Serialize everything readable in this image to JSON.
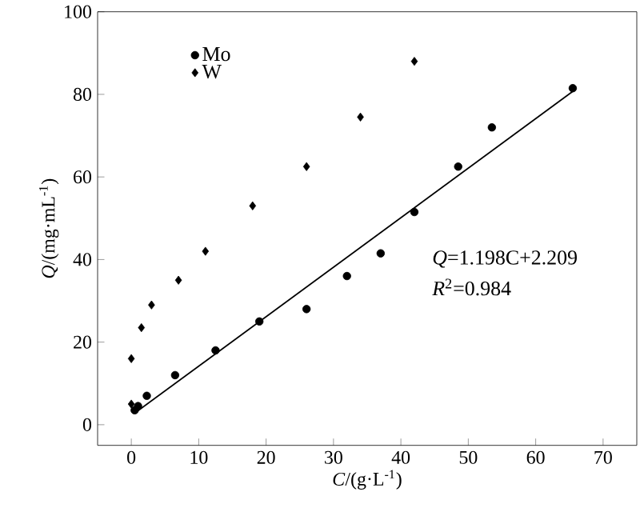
{
  "chart_data": {
    "type": "scatter",
    "xlabel": "*C*/(g·L$^{-1}$)",
    "ylabel": "*Q*/(mg·mL$^{-1}$)",
    "xlim": [
      -5,
      75
    ],
    "ylim": [
      -5,
      100
    ],
    "xticks": [
      0,
      10,
      20,
      30,
      40,
      50,
      60,
      70
    ],
    "yticks": [
      0,
      20,
      40,
      60,
      80,
      100
    ],
    "legend": "top left",
    "grid": false,
    "annotations": [
      "*Q*=1.198C+2.209",
      "*R*$^{2}$=0.984"
    ],
    "series": [
      {
        "name": "Mo",
        "color": "#000000",
        "marker": "circle",
        "x": [
          0.5,
          1,
          2.3,
          6.5,
          12.5,
          19,
          26,
          32,
          37,
          42,
          48.5,
          53.5,
          65.5
        ],
        "values": [
          3.5,
          4.5,
          7,
          12,
          18,
          25,
          28,
          36,
          41.5,
          51.5,
          62.5,
          72,
          81.5
        ]
      },
      {
        "name": "W",
        "color": "#000000",
        "marker": "diamond",
        "x": [
          0,
          0,
          1.5,
          3,
          7,
          11,
          18,
          26,
          34,
          42
        ],
        "values": [
          5,
          16,
          23.5,
          29,
          35,
          42,
          53,
          62.5,
          74.5,
          88
        ]
      },
      {
        "type": "line",
        "color": "#000000",
        "line_style": "solid",
        "x": [
          0.5,
          65.5
        ],
        "values": [
          2.8,
          80.7
        ]
      }
    ]
  }
}
